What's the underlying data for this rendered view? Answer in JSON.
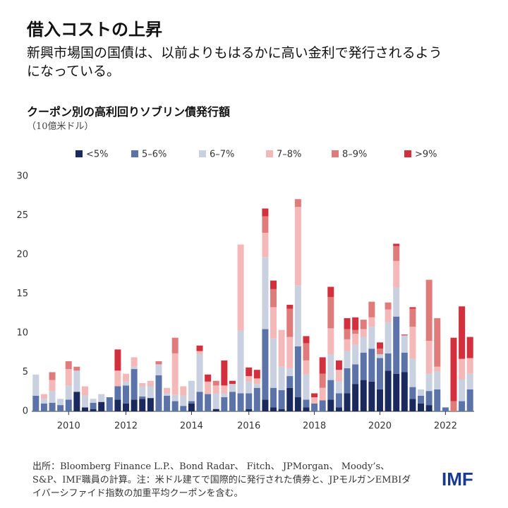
{
  "chart_data": {
    "type": "stacked_bar",
    "title": "借入コストの上昇",
    "subtitle": "新興市場国の国債は、以前よりもはるかに高い金利で発行されるようになっている。",
    "chart_title": "クーポン別の高利回りソブリン債発行額",
    "y_unit": "（10億米ドル）",
    "source": "出所：Bloomberg Finance L.P.、Bond Radar、 Fitch、 JPMorgan、 Moody’s、S&P、IMF職員の計算。注：米ドル建てで国際的に発行された債券と、JPモルガンEMBIダイバーシファイド指数の加重平均クーポンを含む。",
    "logo": "IMF",
    "categories": [
      null,
      null,
      null,
      null,
      "2010",
      null,
      null,
      null,
      null,
      null,
      null,
      "2012",
      null,
      null,
      null,
      null,
      null,
      null,
      null,
      "2014",
      null,
      null,
      null,
      null,
      null,
      null,
      "2016",
      null,
      null,
      null,
      null,
      null,
      null,
      null,
      "2018",
      null,
      null,
      null,
      null,
      null,
      null,
      null,
      "2020",
      null,
      null,
      null,
      null,
      null,
      null,
      null,
      "2022",
      null,
      null,
      null
    ],
    "ylim": [
      0,
      30
    ],
    "yticks": [
      0,
      5,
      10,
      15,
      20,
      25,
      30
    ],
    "grid": false,
    "series": [
      {
        "name": "<5%",
        "color": "#1b2a5e",
        "values": [
          0,
          0,
          0,
          0,
          0,
          2.5,
          0.5,
          0.3,
          1.2,
          0,
          1.5,
          1.0,
          1.5,
          1.6,
          1.7,
          0,
          0,
          0,
          0,
          1.0,
          0,
          0,
          0.3,
          0,
          0,
          0,
          0.3,
          0,
          1.5,
          0.5,
          0.3,
          3.0,
          1.8,
          0.5,
          0,
          0,
          1.5,
          0.5,
          2.3,
          3.5,
          4.0,
          3.8,
          2.8,
          5.2,
          4.8,
          5.0,
          1.6,
          1.0,
          0.8,
          0,
          0,
          0,
          0,
          0
        ]
      },
      {
        "name": "5–6%",
        "color": "#5b73a8",
        "values": [
          2.0,
          1.0,
          1.1,
          0.8,
          1.5,
          0,
          0,
          0.8,
          0,
          1.8,
          1.7,
          2.3,
          3.9,
          0.3,
          0,
          4.6,
          2.0,
          1.3,
          0.7,
          0.3,
          2.5,
          2.2,
          0,
          1.8,
          2.5,
          2.3,
          2.0,
          3.0,
          9.0,
          2.5,
          2.4,
          1.5,
          6.5,
          1.0,
          1.0,
          1.4,
          2.5,
          1.8,
          3.2,
          2.5,
          3.5,
          4.2,
          4.0,
          2.2,
          7.3,
          2.5,
          1.5,
          1.0,
          1.8,
          2.8,
          0.5,
          0,
          1.3,
          2.8
        ]
      },
      {
        "name": "6–7%",
        "color": "#c9d0e0",
        "values": [
          2.7,
          0.6,
          1.5,
          0.8,
          1.8,
          2.7,
          1.5,
          0.5,
          1.0,
          0,
          0,
          0.5,
          0.3,
          1.3,
          1.5,
          1.4,
          0.3,
          0.8,
          1.3,
          2.6,
          4.8,
          0,
          2.0,
          0.5,
          1.0,
          8.0,
          1.5,
          0.5,
          9.2,
          6.3,
          3.0,
          1.0,
          7.8,
          3.2,
          0,
          0,
          3.3,
          1.5,
          2.2,
          2.5,
          2.0,
          2.8,
          0.5,
          4.0,
          3.7,
          2.2,
          3.6,
          0.8,
          2.2,
          2.3,
          0,
          0,
          2.8,
          2.0
        ]
      },
      {
        "name": "7–8%",
        "color": "#f4b8b8",
        "values": [
          0,
          0.6,
          1.4,
          0,
          2.1,
          0,
          1.2,
          0,
          0,
          0,
          2.0,
          1.0,
          1.2,
          0.4,
          0.7,
          0,
          0.7,
          5.3,
          1.2,
          0,
          0.4,
          1.6,
          1.0,
          1.0,
          0,
          11.0,
          0.7,
          0.7,
          3.1,
          4.0,
          4.7,
          4.0,
          10.0,
          1.8,
          0.8,
          1.6,
          3.3,
          1.5,
          1.5,
          1.4,
          1.0,
          1.2,
          0,
          1.6,
          3.4,
          0,
          4.1,
          0,
          4.2,
          0.6,
          0,
          0,
          2.6,
          2.0
        ]
      },
      {
        "name": "8–9%",
        "color": "#e07b7b",
        "values": [
          0,
          0,
          1.0,
          0,
          1.0,
          0.5,
          0,
          0,
          0,
          0,
          0,
          0,
          0,
          0,
          0,
          0.4,
          0,
          2.0,
          0,
          0,
          0,
          0,
          0.6,
          0,
          0,
          0,
          0,
          0,
          2.1,
          2.3,
          0,
          3.6,
          1.0,
          2.2,
          0,
          1.8,
          4.0,
          0,
          1.3,
          0.5,
          1.2,
          2.0,
          0.7,
          0.9,
          1.9,
          0,
          2.3,
          0,
          7.8,
          6.2,
          0,
          1.3,
          0,
          0
        ]
      },
      {
        "name": ">9%",
        "color": "#d32f3c",
        "values": [
          0,
          0,
          0,
          0,
          0,
          0,
          0,
          0,
          0,
          0,
          2.7,
          0,
          0,
          0,
          0,
          0,
          0,
          0,
          0,
          0,
          0.7,
          0.9,
          0,
          3.2,
          0.4,
          0,
          1.1,
          1.1,
          1.0,
          1.1,
          0,
          0.5,
          0,
          0.9,
          0.5,
          2.1,
          1.3,
          1.2,
          1.4,
          1.6,
          0,
          0,
          0.8,
          0,
          0.3,
          0.1,
          0.2,
          0,
          0,
          0,
          0,
          8.1,
          6.7,
          2.7
        ]
      }
    ]
  }
}
